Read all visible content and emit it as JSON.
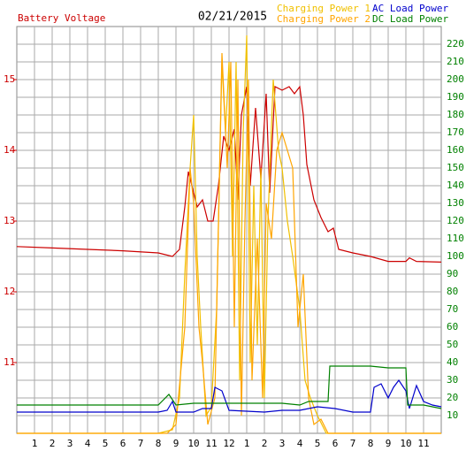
{
  "chart_data": {
    "type": "line",
    "title": "02/21/2015",
    "y_label": "Battery Voltage",
    "xlim": [
      0,
      24
    ],
    "xticks": [
      1,
      2,
      3,
      4,
      5,
      6,
      7,
      8,
      9,
      10,
      11,
      12,
      {
        "value": 13,
        "label": "1"
      },
      {
        "value": 14,
        "label": "2"
      },
      {
        "value": 15,
        "label": "3"
      },
      {
        "value": 16,
        "label": "4"
      },
      {
        "value": 17,
        "label": "5"
      },
      {
        "value": 18,
        "label": "6"
      },
      {
        "value": 19,
        "label": "7"
      },
      {
        "value": 20,
        "label": "8"
      },
      {
        "value": 21,
        "label": "9"
      },
      {
        "value": 22,
        "label": "10"
      },
      {
        "value": 23,
        "label": "11"
      }
    ],
    "ylim": [
      10,
      15.75
    ],
    "yticks": [
      11,
      12,
      13,
      14,
      15
    ],
    "y_color": "#cc0000",
    "y2lim": [
      0,
      230
    ],
    "y2ticks": [
      10,
      20,
      30,
      40,
      50,
      60,
      70,
      80,
      90,
      100,
      110,
      120,
      130,
      140,
      150,
      160,
      170,
      180,
      190,
      200,
      210,
      220
    ],
    "y2_color": "#008000",
    "grid": true,
    "series": [
      {
        "name": "Battery Voltage",
        "legend": false,
        "color": "#cc0000",
        "axis": "y",
        "x": [
          0,
          2,
          4,
          6,
          8,
          8.8,
          9.2,
          9.5,
          9.7,
          9.9,
          10.2,
          10.5,
          10.8,
          11.1,
          11.4,
          11.7,
          12,
          12.3,
          12.5,
          12.7,
          13,
          13.2,
          13.5,
          13.8,
          14.1,
          14.3,
          14.6,
          15,
          15.4,
          15.7,
          16,
          16.2,
          16.4,
          16.8,
          17.2,
          17.6,
          17.9,
          18.2,
          19,
          20,
          21,
          22,
          22.2,
          22.6,
          24
        ],
        "values": [
          12.64,
          12.62,
          12.6,
          12.58,
          12.55,
          12.5,
          12.6,
          13.2,
          13.7,
          13.5,
          13.2,
          13.3,
          13.0,
          13.0,
          13.5,
          14.2,
          14.0,
          14.3,
          13.3,
          14.5,
          14.9,
          13.5,
          14.6,
          13.6,
          14.8,
          13.4,
          14.9,
          14.85,
          14.9,
          14.8,
          14.9,
          14.5,
          13.8,
          13.3,
          13.05,
          12.85,
          12.9,
          12.6,
          12.55,
          12.5,
          12.43,
          12.43,
          12.48,
          12.43,
          12.42
        ]
      },
      {
        "name": "Charging Power 1",
        "color": "#f0c000",
        "axis": "y2",
        "x": [
          0,
          8,
          8.8,
          9.2,
          9.5,
          9.8,
          10,
          10.2,
          10.4,
          10.7,
          11,
          11.3,
          11.6,
          11.8,
          12,
          12.2,
          12.4,
          12.6,
          12.8,
          13,
          13.2,
          13.4,
          13.6,
          13.8,
          14,
          14.2,
          14.5,
          14.8,
          15,
          15.3,
          15.6,
          16,
          16.3,
          16.6,
          17,
          17.5,
          24
        ],
        "values": [
          0,
          0,
          2,
          20,
          90,
          150,
          180,
          100,
          60,
          10,
          15,
          70,
          210,
          170,
          210,
          100,
          210,
          30,
          170,
          225,
          40,
          140,
          50,
          150,
          20,
          120,
          200,
          160,
          150,
          120,
          100,
          70,
          30,
          20,
          10,
          0,
          0
        ]
      },
      {
        "name": "Charging Power 2",
        "color": "#ffa500",
        "axis": "y2",
        "x": [
          0,
          8.5,
          9,
          9.5,
          9.8,
          10,
          10.3,
          10.5,
          10.8,
          11.2,
          11.6,
          11.9,
          12.1,
          12.3,
          12.5,
          12.7,
          12.9,
          13.1,
          13.3,
          13.6,
          13.9,
          14.1,
          14.4,
          14.7,
          15,
          15.3,
          15.6,
          15.9,
          16.2,
          16.5,
          16.8,
          17.2,
          17.6,
          24
        ],
        "values": [
          0,
          0,
          5,
          60,
          150,
          130,
          60,
          40,
          5,
          20,
          215,
          150,
          210,
          60,
          200,
          10,
          120,
          200,
          30,
          110,
          20,
          130,
          110,
          160,
          170,
          160,
          150,
          60,
          90,
          20,
          5,
          8,
          0,
          0
        ]
      },
      {
        "name": "AC Load Power",
        "color": "#0000cc",
        "axis": "y2",
        "x": [
          0,
          8,
          8.5,
          8.8,
          9,
          10,
          10.5,
          11,
          11.2,
          11.6,
          12,
          14,
          15,
          16,
          17,
          18,
          19,
          20,
          20.2,
          20.6,
          21,
          21.3,
          21.6,
          22,
          22.2,
          22.6,
          23,
          23.5,
          24
        ],
        "values": [
          12,
          12,
          13,
          18,
          12,
          12,
          14,
          14,
          26,
          24,
          13,
          12,
          13,
          13,
          15,
          14,
          12,
          12,
          26,
          28,
          20,
          26,
          30,
          24,
          14,
          27,
          18,
          16,
          15
        ]
      },
      {
        "name": "DC Load Power",
        "color": "#008000",
        "axis": "y2",
        "x": [
          0,
          8,
          8.6,
          9,
          10,
          14,
          15,
          16,
          16.5,
          17,
          17.6,
          17.7,
          20,
          21,
          22,
          22.1,
          23,
          24
        ],
        "values": [
          16,
          16,
          22,
          16,
          17,
          17,
          17,
          16,
          18,
          18,
          18,
          38,
          38,
          37,
          37,
          16,
          16,
          14
        ]
      }
    ]
  }
}
